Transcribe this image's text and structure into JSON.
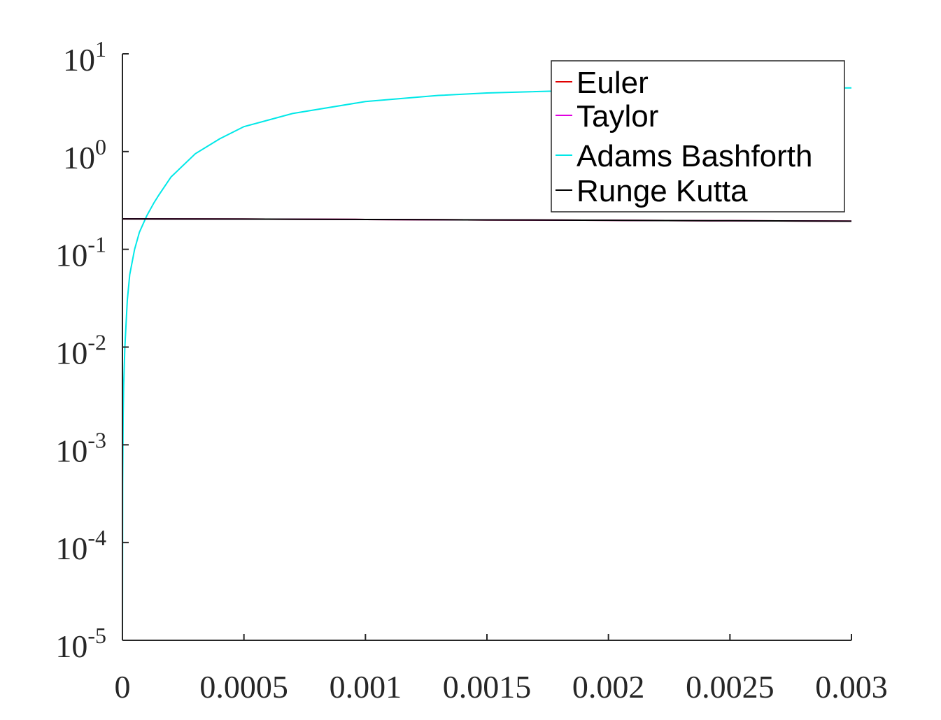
{
  "chart_data": {
    "type": "line",
    "title": "",
    "xlabel": "",
    "ylabel": "",
    "xlim": [
      0,
      0.003
    ],
    "ylim": [
      1e-05,
      10
    ],
    "yscale": "log",
    "grid": false,
    "legend_position": "top-right",
    "x_ticks": [
      {
        "value": 0,
        "label": "0"
      },
      {
        "value": 0.0005,
        "label": "0.0005"
      },
      {
        "value": 0.001,
        "label": "0.001"
      },
      {
        "value": 0.0015,
        "label": "0.0015"
      },
      {
        "value": 0.002,
        "label": "0.002"
      },
      {
        "value": 0.0025,
        "label": "0.0025"
      },
      {
        "value": 0.003,
        "label": "0.003"
      }
    ],
    "y_ticks": [
      {
        "value": 10,
        "base": "10",
        "exp": "1"
      },
      {
        "value": 1,
        "base": "10",
        "exp": "0"
      },
      {
        "value": 0.1,
        "base": "10",
        "exp": "-1"
      },
      {
        "value": 0.01,
        "base": "10",
        "exp": "-2"
      },
      {
        "value": 0.001,
        "base": "10",
        "exp": "-3"
      },
      {
        "value": 0.0001,
        "base": "10",
        "exp": "-4"
      },
      {
        "value": 1e-05,
        "base": "10",
        "exp": "-5"
      }
    ],
    "series": [
      {
        "name": "Euler",
        "color": "#e00000",
        "x": [
          0,
          0.0005,
          0.001,
          0.0015,
          0.002,
          0.0025,
          0.003
        ],
        "y": [
          0.205,
          0.204,
          0.202,
          0.2,
          0.198,
          0.196,
          0.194
        ]
      },
      {
        "name": "Taylor",
        "color": "#e000e0",
        "x": [
          0,
          0.0005,
          0.001,
          0.0015,
          0.002,
          0.0025,
          0.003
        ],
        "y": [
          0.205,
          0.204,
          0.202,
          0.2,
          0.198,
          0.196,
          0.194
        ]
      },
      {
        "name": "Adams Bashforth",
        "color": "#00e8e8",
        "x": [
          0,
          1e-06,
          3e-06,
          5e-06,
          1e-05,
          2e-05,
          3e-05,
          5e-05,
          7e-05,
          0.0001,
          0.00013,
          0.00015,
          0.0002,
          0.0003,
          0.0004,
          0.0005,
          0.0007,
          0.001,
          0.0013,
          0.0015,
          0.002,
          0.0025,
          0.003
        ],
        "y": [
          1e-05,
          0.0004,
          0.002,
          0.004,
          0.01,
          0.03,
          0.055,
          0.1,
          0.15,
          0.22,
          0.3,
          0.36,
          0.55,
          0.95,
          1.35,
          1.8,
          2.45,
          3.25,
          3.75,
          3.98,
          4.3,
          4.42,
          4.48
        ]
      },
      {
        "name": "Runge Kutta",
        "color": "#000000",
        "x": [
          0,
          0.0005,
          0.001,
          0.0015,
          0.002,
          0.0025,
          0.003
        ],
        "y": [
          0.205,
          0.204,
          0.202,
          0.2,
          0.198,
          0.196,
          0.194
        ]
      }
    ]
  }
}
